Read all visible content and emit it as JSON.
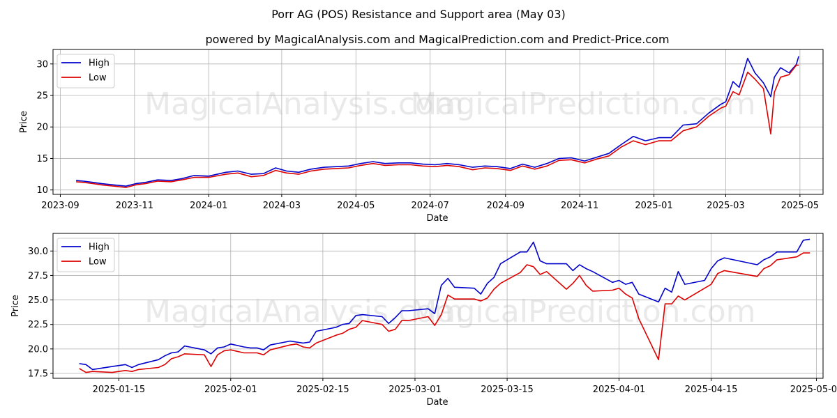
{
  "title": "Porr AG (POS) Resistance and Support area (May 03)",
  "subtitle": "powered by MagicalAnalysis.com and MagicalPrediction.com and Predict-Price.com",
  "watermarks": [
    "MagicalAnalysis.com",
    "MagicalPrediction.com"
  ],
  "colors": {
    "high": "#0000cc",
    "low": "#dd0000",
    "grid": "#b0b0b0"
  },
  "chart_data": [
    {
      "type": "line",
      "xlabel": "Date",
      "ylabel": "Price",
      "xlim": [
        "2023-08-26",
        "2025-05-20"
      ],
      "ylim": [
        9.3,
        32.3
      ],
      "legend": "top-left",
      "grid": true,
      "xticks": [
        "2023-09-01",
        "2023-11-01",
        "2024-01-01",
        "2024-03-01",
        "2024-05-01",
        "2024-07-01",
        "2024-09-01",
        "2024-11-01",
        "2025-01-01",
        "2025-03-01",
        "2025-05-01"
      ],
      "xtick_labels": [
        "2023-09",
        "2023-11",
        "2024-01",
        "2024-03",
        "2024-05",
        "2024-07",
        "2024-09",
        "2024-11",
        "2025-01",
        "2025-03",
        "2025-05"
      ],
      "yticks": [
        10,
        15,
        20,
        25,
        30
      ],
      "series": [
        {
          "name": "High",
          "x": [
            "2023-09-14",
            "2023-09-20",
            "2023-09-28",
            "2023-10-05",
            "2023-10-15",
            "2023-10-25",
            "2023-11-02",
            "2023-11-10",
            "2023-11-20",
            "2023-12-01",
            "2023-12-10",
            "2023-12-20",
            "2024-01-01",
            "2024-01-15",
            "2024-01-25",
            "2024-02-05",
            "2024-02-15",
            "2024-02-25",
            "2024-03-05",
            "2024-03-15",
            "2024-03-25",
            "2024-04-05",
            "2024-04-15",
            "2024-04-25",
            "2024-05-05",
            "2024-05-15",
            "2024-05-25",
            "2024-06-05",
            "2024-06-15",
            "2024-06-25",
            "2024-07-05",
            "2024-07-15",
            "2024-07-25",
            "2024-08-05",
            "2024-08-15",
            "2024-08-25",
            "2024-09-05",
            "2024-09-15",
            "2024-09-25",
            "2024-10-05",
            "2024-10-15",
            "2024-10-25",
            "2024-11-05",
            "2024-11-15",
            "2024-11-25",
            "2024-12-05",
            "2024-12-15",
            "2024-12-25",
            "2025-01-05",
            "2025-01-15",
            "2025-01-25",
            "2025-02-05",
            "2025-02-15",
            "2025-02-25",
            "2025-03-01",
            "2025-03-07",
            "2025-03-12",
            "2025-03-19",
            "2025-03-25",
            "2025-04-01",
            "2025-04-07",
            "2025-04-10",
            "2025-04-15",
            "2025-04-22",
            "2025-04-28",
            "2025-04-30"
          ],
          "values": [
            11.5,
            11.4,
            11.2,
            11.0,
            10.8,
            10.6,
            11.0,
            11.2,
            11.6,
            11.5,
            11.8,
            12.3,
            12.2,
            12.8,
            13.0,
            12.5,
            12.6,
            13.5,
            13.0,
            12.8,
            13.3,
            13.6,
            13.7,
            13.8,
            14.2,
            14.5,
            14.2,
            14.3,
            14.3,
            14.1,
            14.0,
            14.2,
            14.0,
            13.6,
            13.8,
            13.7,
            13.4,
            14.1,
            13.6,
            14.2,
            15.0,
            15.1,
            14.6,
            15.2,
            15.8,
            17.2,
            18.5,
            17.8,
            18.3,
            18.3,
            20.3,
            20.5,
            22.2,
            23.6,
            24.0,
            27.2,
            26.3,
            30.9,
            28.6,
            27.0,
            24.8,
            27.9,
            29.4,
            28.6,
            29.9,
            31.2
          ]
        },
        {
          "name": "Low",
          "x": [
            "2023-09-14",
            "2023-09-20",
            "2023-09-28",
            "2023-10-05",
            "2023-10-15",
            "2023-10-25",
            "2023-11-02",
            "2023-11-10",
            "2023-11-20",
            "2023-12-01",
            "2023-12-10",
            "2023-12-20",
            "2024-01-01",
            "2024-01-15",
            "2024-01-25",
            "2024-02-05",
            "2024-02-15",
            "2024-02-25",
            "2024-03-05",
            "2024-03-15",
            "2024-03-25",
            "2024-04-05",
            "2024-04-15",
            "2024-04-25",
            "2024-05-05",
            "2024-05-15",
            "2024-05-25",
            "2024-06-05",
            "2024-06-15",
            "2024-06-25",
            "2024-07-05",
            "2024-07-15",
            "2024-07-25",
            "2024-08-05",
            "2024-08-15",
            "2024-08-25",
            "2024-09-05",
            "2024-09-15",
            "2024-09-25",
            "2024-10-05",
            "2024-10-15",
            "2024-10-25",
            "2024-11-05",
            "2024-11-15",
            "2024-11-25",
            "2024-12-05",
            "2024-12-15",
            "2024-12-25",
            "2025-01-05",
            "2025-01-15",
            "2025-01-25",
            "2025-02-05",
            "2025-02-15",
            "2025-02-25",
            "2025-03-01",
            "2025-03-07",
            "2025-03-12",
            "2025-03-19",
            "2025-03-25",
            "2025-04-01",
            "2025-04-07",
            "2025-04-10",
            "2025-04-15",
            "2025-04-22",
            "2025-04-28",
            "2025-04-30"
          ],
          "values": [
            11.3,
            11.2,
            11.0,
            10.8,
            10.6,
            10.4,
            10.8,
            11.0,
            11.4,
            11.3,
            11.6,
            12.0,
            12.0,
            12.5,
            12.7,
            12.1,
            12.3,
            13.1,
            12.7,
            12.5,
            13.0,
            13.3,
            13.4,
            13.5,
            13.9,
            14.2,
            13.9,
            14.0,
            14.0,
            13.8,
            13.7,
            13.9,
            13.7,
            13.2,
            13.5,
            13.4,
            13.1,
            13.8,
            13.3,
            13.8,
            14.7,
            14.8,
            14.3,
            14.9,
            15.4,
            16.8,
            17.8,
            17.2,
            17.8,
            17.8,
            19.4,
            20.0,
            21.7,
            23.0,
            23.3,
            25.6,
            25.1,
            28.7,
            27.6,
            26.1,
            18.9,
            25.5,
            27.9,
            28.3,
            29.8,
            29.8
          ]
        }
      ]
    },
    {
      "type": "line",
      "xlabel": "Date",
      "ylabel": "Price",
      "xlim": [
        "2025-01-05",
        "2025-05-02"
      ],
      "ylim": [
        17.0,
        31.8
      ],
      "legend": "top-left",
      "grid": true,
      "xticks": [
        "2025-01-15",
        "2025-02-01",
        "2025-02-15",
        "2025-03-01",
        "2025-03-15",
        "2025-04-01",
        "2025-04-15",
        "2025-05-01"
      ],
      "xtick_labels": [
        "2025-01-15",
        "2025-02-01",
        "2025-02-15",
        "2025-03-01",
        "2025-03-15",
        "2025-04-01",
        "2025-04-15",
        "2025-05-01"
      ],
      "yticks": [
        17.5,
        20.0,
        22.5,
        25.0,
        27.5,
        30.0
      ],
      "ytick_labels": [
        "17.5",
        "20.0",
        "22.5",
        "25.0",
        "27.5",
        "30.0"
      ],
      "series": [
        {
          "name": "High",
          "x": [
            "2025-01-09",
            "2025-01-10",
            "2025-01-11",
            "2025-01-14",
            "2025-01-16",
            "2025-01-17",
            "2025-01-18",
            "2025-01-21",
            "2025-01-22",
            "2025-01-23",
            "2025-01-24",
            "2025-01-25",
            "2025-01-28",
            "2025-01-29",
            "2025-01-30",
            "2025-01-31",
            "2025-02-01",
            "2025-02-03",
            "2025-02-04",
            "2025-02-05",
            "2025-02-06",
            "2025-02-07",
            "2025-02-10",
            "2025-02-11",
            "2025-02-12",
            "2025-02-13",
            "2025-02-14",
            "2025-02-17",
            "2025-02-18",
            "2025-02-19",
            "2025-02-20",
            "2025-02-21",
            "2025-02-24",
            "2025-02-25",
            "2025-02-26",
            "2025-02-27",
            "2025-02-28",
            "2025-03-03",
            "2025-03-04",
            "2025-03-05",
            "2025-03-06",
            "2025-03-07",
            "2025-03-10",
            "2025-03-11",
            "2025-03-12",
            "2025-03-13",
            "2025-03-14",
            "2025-03-17",
            "2025-03-18",
            "2025-03-19",
            "2025-03-20",
            "2025-03-21",
            "2025-03-24",
            "2025-03-25",
            "2025-03-26",
            "2025-03-27",
            "2025-03-28",
            "2025-03-31",
            "2025-04-01",
            "2025-04-02",
            "2025-04-03",
            "2025-04-04",
            "2025-04-07",
            "2025-04-08",
            "2025-04-09",
            "2025-04-10",
            "2025-04-11",
            "2025-04-14",
            "2025-04-15",
            "2025-04-16",
            "2025-04-17",
            "2025-04-22",
            "2025-04-23",
            "2025-04-24",
            "2025-04-25",
            "2025-04-28",
            "2025-04-29",
            "2025-04-30"
          ],
          "values": [
            18.5,
            18.4,
            17.9,
            18.2,
            18.4,
            18.1,
            18.4,
            18.9,
            19.3,
            19.6,
            19.7,
            20.3,
            19.9,
            19.5,
            20.1,
            20.2,
            20.5,
            20.2,
            20.1,
            20.1,
            19.9,
            20.4,
            20.8,
            20.7,
            20.6,
            20.7,
            21.8,
            22.2,
            22.5,
            22.6,
            23.4,
            23.5,
            23.3,
            22.6,
            23.2,
            23.9,
            23.9,
            24.1,
            23.6,
            26.5,
            27.2,
            26.3,
            26.2,
            25.6,
            26.7,
            27.3,
            28.7,
            29.9,
            29.9,
            30.9,
            29.0,
            28.7,
            28.7,
            28.0,
            28.6,
            28.2,
            27.9,
            26.8,
            27.0,
            26.6,
            26.8,
            25.6,
            24.8,
            26.2,
            25.8,
            27.9,
            26.6,
            27.0,
            28.2,
            29.0,
            29.3,
            28.6,
            29.1,
            29.4,
            29.9,
            29.9,
            31.1,
            31.2
          ]
        },
        {
          "name": "Low",
          "x": [
            "2025-01-09",
            "2025-01-10",
            "2025-01-11",
            "2025-01-14",
            "2025-01-16",
            "2025-01-17",
            "2025-01-18",
            "2025-01-21",
            "2025-01-22",
            "2025-01-23",
            "2025-01-24",
            "2025-01-25",
            "2025-01-28",
            "2025-01-29",
            "2025-01-30",
            "2025-01-31",
            "2025-02-01",
            "2025-02-03",
            "2025-02-04",
            "2025-02-05",
            "2025-02-06",
            "2025-02-07",
            "2025-02-10",
            "2025-02-11",
            "2025-02-12",
            "2025-02-13",
            "2025-02-14",
            "2025-02-17",
            "2025-02-18",
            "2025-02-19",
            "2025-02-20",
            "2025-02-21",
            "2025-02-24",
            "2025-02-25",
            "2025-02-26",
            "2025-02-27",
            "2025-02-28",
            "2025-03-03",
            "2025-03-04",
            "2025-03-05",
            "2025-03-06",
            "2025-03-07",
            "2025-03-10",
            "2025-03-11",
            "2025-03-12",
            "2025-03-13",
            "2025-03-14",
            "2025-03-17",
            "2025-03-18",
            "2025-03-19",
            "2025-03-20",
            "2025-03-21",
            "2025-03-24",
            "2025-03-25",
            "2025-03-26",
            "2025-03-27",
            "2025-03-28",
            "2025-03-31",
            "2025-04-01",
            "2025-04-02",
            "2025-04-03",
            "2025-04-04",
            "2025-04-07",
            "2025-04-08",
            "2025-04-09",
            "2025-04-10",
            "2025-04-11",
            "2025-04-14",
            "2025-04-15",
            "2025-04-16",
            "2025-04-17",
            "2025-04-22",
            "2025-04-23",
            "2025-04-24",
            "2025-04-25",
            "2025-04-28",
            "2025-04-29",
            "2025-04-30"
          ],
          "values": [
            18.0,
            17.6,
            17.7,
            17.6,
            17.8,
            17.7,
            17.9,
            18.1,
            18.4,
            19.0,
            19.2,
            19.5,
            19.4,
            18.2,
            19.4,
            19.8,
            19.9,
            19.6,
            19.6,
            19.6,
            19.4,
            19.9,
            20.4,
            20.5,
            20.2,
            20.1,
            20.6,
            21.4,
            21.6,
            22.0,
            22.2,
            22.9,
            22.5,
            21.8,
            22.0,
            22.9,
            22.9,
            23.3,
            22.4,
            23.5,
            25.5,
            25.1,
            25.1,
            24.9,
            25.2,
            26.1,
            26.7,
            27.8,
            28.6,
            28.4,
            27.6,
            27.9,
            26.1,
            26.7,
            27.5,
            26.5,
            25.9,
            26.0,
            26.2,
            25.6,
            25.2,
            23.1,
            18.9,
            24.6,
            24.6,
            25.4,
            25.0,
            26.2,
            26.6,
            27.7,
            28.0,
            27.4,
            28.2,
            28.5,
            29.1,
            29.4,
            29.8,
            29.8
          ]
        }
      ]
    }
  ]
}
